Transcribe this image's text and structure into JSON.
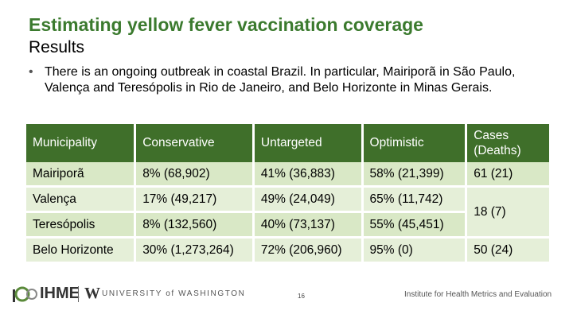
{
  "slide": {
    "title": "Estimating yellow fever vaccination coverage",
    "subtitle": "Results",
    "bullet": "There is an ongoing outbreak in coastal Brazil. In particular, Mairiporã in São Paulo, Valença and Teresópolis in Rio de Janeiro, and Belo Horizonte in Minas Gerais."
  },
  "table": {
    "headers": [
      "Municipality",
      "Conservative",
      "Untargeted",
      "Optimistic",
      "Cases (Deaths)"
    ],
    "rows": [
      {
        "municipality": "Mairiporã",
        "conservative": "8% (68,902)",
        "untargeted": "41% (36,883)",
        "optimistic": "58% (21,399)",
        "cases": "61 (21)"
      },
      {
        "municipality": "Valença",
        "conservative": "17% (49,217)",
        "untargeted": "49% (24,049)",
        "optimistic": "65% (11,742)",
        "cases": "18 (7)"
      },
      {
        "municipality": "Teresópolis",
        "conservative": "8% (132,560)",
        "untargeted": "40% (73,137)",
        "optimistic": "55% (45,451)"
      },
      {
        "municipality": "Belo Horizonte",
        "conservative": "30% (1,273,264)",
        "untargeted": "72% (206,960)",
        "optimistic": "95% (0)",
        "cases": "50 (24)"
      }
    ]
  },
  "footer": {
    "ihme_logo": "IHME",
    "uw_logo_letter": "W",
    "uw_text": "UNIVERSITY of WASHINGTON",
    "page_number": "16",
    "institute": "Institute for Health Metrics and Evaluation",
    "logo_icon": "ihme-mark-icon"
  }
}
